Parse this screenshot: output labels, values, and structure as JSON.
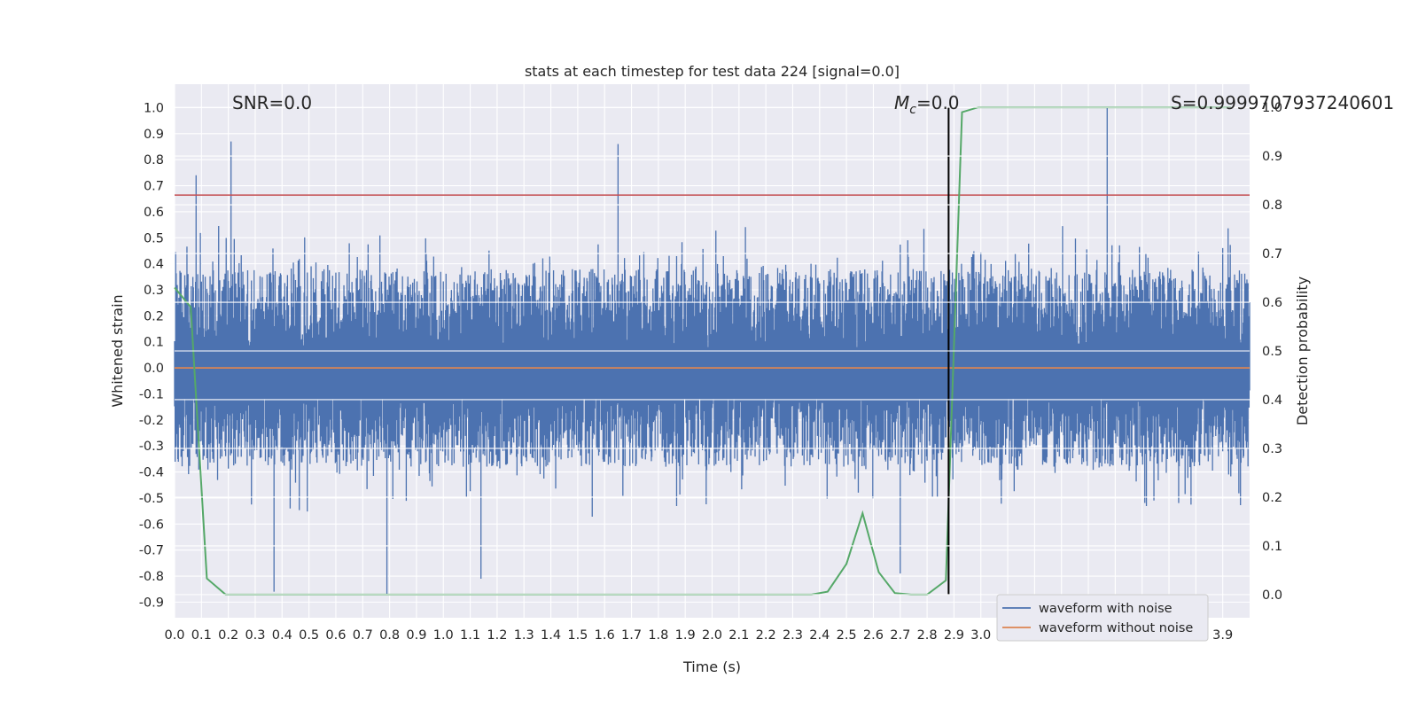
{
  "chart_data": {
    "type": "line",
    "title": "stats at each timestep for test data 224 [signal=0.0]",
    "xlabel": "Time (s)",
    "ylabel": "Whitened strain",
    "ylabel_right": "Detection probability",
    "xlim": [
      0.0,
      4.0
    ],
    "ylim": [
      -0.96,
      1.09
    ],
    "ylim_right": [
      -0.0475,
      1.0475
    ],
    "x_ticks": [
      "0.0",
      "0.1",
      "0.2",
      "0.3",
      "0.4",
      "0.5",
      "0.6",
      "0.7",
      "0.8",
      "0.9",
      "1.0",
      "1.1",
      "1.2",
      "1.3",
      "1.4",
      "1.5",
      "1.6",
      "1.7",
      "1.8",
      "1.9",
      "2.0",
      "2.1",
      "2.2",
      "2.3",
      "2.4",
      "2.5",
      "2.6",
      "2.7",
      "2.8",
      "2.9",
      "3.0",
      "3.1",
      "3.2",
      "3.3",
      "3.4",
      "3.5",
      "3.6",
      "3.7",
      "3.8",
      "3.9"
    ],
    "y_ticks": [
      "1.0",
      "0.9",
      "0.8",
      "0.7",
      "0.6",
      "0.5",
      "0.4",
      "0.3",
      "0.2",
      "0.1",
      "0.0",
      "-0.1",
      "-0.2",
      "-0.3",
      "-0.4",
      "-0.5",
      "-0.6",
      "-0.7",
      "-0.8",
      "-0.9"
    ],
    "y_ticks_right": [
      "1.0",
      "0.9",
      "0.8",
      "0.7",
      "0.6",
      "0.5",
      "0.4",
      "0.3",
      "0.2",
      "0.1",
      "0.0"
    ],
    "annotations": {
      "snr": "SNR=0.0",
      "mc": "=0.0",
      "mc_symbol": "M",
      "mc_sub": "c",
      "score": "S=0.9999707937240601"
    },
    "threshold_line": {
      "value": 0.82,
      "color": "#c44e52"
    },
    "marker_line": {
      "x": 2.88,
      "color": "#000000"
    },
    "series": [
      {
        "name": "waveform with noise",
        "color": "#4c72b0",
        "envelope_samples": 2000,
        "peaks": [
          {
            "x": 0.21,
            "y": 0.87
          },
          {
            "x": 1.65,
            "y": 0.86
          },
          {
            "x": 3.47,
            "y": 1.0
          },
          {
            "x": 0.08,
            "y": 0.74
          },
          {
            "x": 0.37,
            "y": -0.86
          },
          {
            "x": 0.79,
            "y": -0.87
          },
          {
            "x": 1.14,
            "y": -0.81
          },
          {
            "x": 2.7,
            "y": -0.79
          }
        ]
      },
      {
        "name": "waveform without noise",
        "color": "#dd8452",
        "x": [
          0.0,
          4.0
        ],
        "y": [
          0.0,
          0.0
        ]
      },
      {
        "color": "#55a868",
        "axis": "right",
        "x": [
          0.0,
          0.06,
          0.12,
          0.19,
          0.25,
          2.37,
          2.43,
          2.5,
          2.56,
          2.62,
          2.68,
          2.74,
          2.8,
          2.87,
          2.93,
          2.99,
          3.93
        ],
        "y": [
          0.63,
          0.59,
          0.033,
          0.0,
          0.0,
          0.0,
          0.006,
          0.063,
          0.167,
          0.046,
          0.003,
          0.0,
          0.0,
          0.029,
          0.99,
          1.0,
          1.0
        ]
      }
    ],
    "legend": {
      "location": "lower right",
      "entries": [
        "waveform with noise",
        "waveform without noise"
      ]
    },
    "grid": true
  }
}
